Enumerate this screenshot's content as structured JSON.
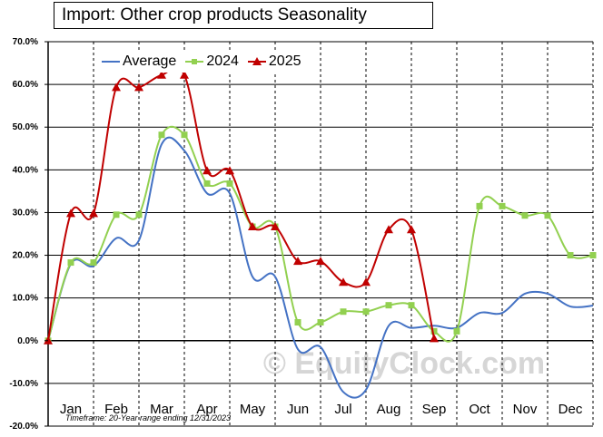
{
  "title": "Import:  Other crop products Seasonality",
  "footnote": "Timeframe: 20-Year range ending 12/31/2023",
  "watermark": "© EquityClock.com",
  "chart_data": {
    "type": "line",
    "ylim": [
      -20,
      70
    ],
    "yticks": [
      -20,
      -10,
      0,
      10,
      20,
      30,
      40,
      50,
      60,
      70
    ],
    "ytick_labels": [
      "-20.0%",
      "-10.0%",
      "0.0%",
      "10.0%",
      "20.0%",
      "30.0%",
      "40.0%",
      "50.0%",
      "60.0%",
      "70.0%"
    ],
    "months": [
      "Jan",
      "Feb",
      "Mar",
      "Apr",
      "May",
      "Jun",
      "Jul",
      "Aug",
      "Sep",
      "Oct",
      "Nov",
      "Dec"
    ],
    "legend_position": "top-left",
    "series": [
      {
        "name": "Average",
        "color": "#4472c4",
        "marker": "none",
        "points": [
          [
            0,
            0
          ],
          [
            0.5,
            18
          ],
          [
            1,
            17.5
          ],
          [
            1.5,
            24
          ],
          [
            2,
            23.5
          ],
          [
            2.5,
            46
          ],
          [
            3,
            44.5
          ],
          [
            3.5,
            34.5
          ],
          [
            4,
            34.5
          ],
          [
            4.5,
            15
          ],
          [
            5,
            15
          ],
          [
            5.5,
            -2
          ],
          [
            6,
            -1.5
          ],
          [
            6.5,
            -12
          ],
          [
            7,
            -11.5
          ],
          [
            7.5,
            3.5
          ],
          [
            8,
            3
          ],
          [
            8.5,
            3.5
          ],
          [
            9,
            3
          ],
          [
            9.5,
            6.5
          ],
          [
            10,
            6.5
          ],
          [
            10.5,
            11
          ],
          [
            11,
            11
          ],
          [
            11.5,
            8
          ],
          [
            12,
            8.2
          ]
        ]
      },
      {
        "name": "2024",
        "color": "#92d050",
        "marker": "square",
        "points": [
          [
            0,
            0
          ],
          [
            0.5,
            18.3
          ],
          [
            1,
            18.3
          ],
          [
            1.5,
            29.5
          ],
          [
            2,
            29.5
          ],
          [
            2.5,
            48.2
          ],
          [
            3,
            48.2
          ],
          [
            3.5,
            36.8
          ],
          [
            4,
            36.8
          ],
          [
            4.5,
            26.7
          ],
          [
            5,
            26.7
          ],
          [
            5.5,
            4.3
          ],
          [
            6,
            4.3
          ],
          [
            6.5,
            6.8
          ],
          [
            7,
            6.8
          ],
          [
            7.5,
            8.3
          ],
          [
            8,
            8.3
          ],
          [
            8.5,
            2.2
          ],
          [
            9,
            2.2
          ],
          [
            9.5,
            31.5
          ],
          [
            10,
            31.5
          ],
          [
            10.5,
            29.3
          ],
          [
            11,
            29.3
          ],
          [
            11.5,
            20
          ],
          [
            12,
            20
          ]
        ]
      },
      {
        "name": "2025",
        "color": "#c00000",
        "marker": "triangle",
        "points": [
          [
            0,
            0
          ],
          [
            0.5,
            29.8
          ],
          [
            1,
            29.8
          ],
          [
            1.5,
            59.3
          ],
          [
            2,
            59.3
          ],
          [
            2.5,
            62.2
          ],
          [
            3,
            62.2
          ],
          [
            3.5,
            39.8
          ],
          [
            4,
            39.8
          ],
          [
            4.5,
            26.7
          ],
          [
            5,
            26.7
          ],
          [
            5.5,
            18.6
          ],
          [
            6,
            18.6
          ],
          [
            6.5,
            13.7
          ],
          [
            7,
            13.7
          ],
          [
            7.5,
            26
          ],
          [
            8,
            26
          ],
          [
            8.5,
            0.5
          ]
        ]
      }
    ]
  }
}
